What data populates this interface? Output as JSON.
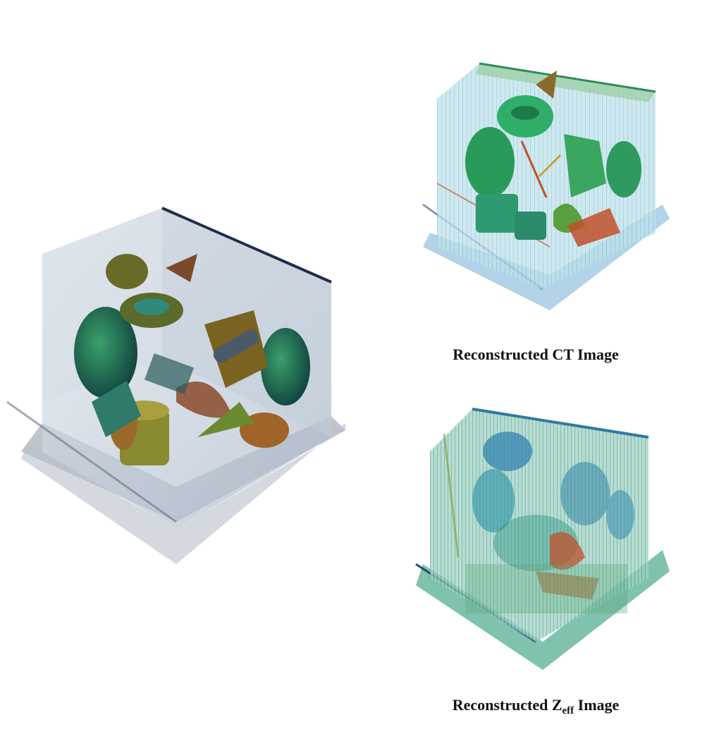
{
  "captions": {
    "ct": "Reconstructed CT Image",
    "zeff_prefix": "Reconstructed Z",
    "zeff_subscript": "eff",
    "zeff_suffix": " Image"
  },
  "colors": {
    "box_glass": "#c9d3de",
    "box_edge": "#1e2e4a",
    "object_green": "#2f8f5a",
    "object_olive": "#8a7a2a",
    "object_rust": "#9a5a2a",
    "ct_cyan": "#7fc4d6",
    "ct_green": "#2fae6a",
    "ct_red": "#c0502a",
    "zeff_teal": "#3ca8a8",
    "zeff_blue": "#2f7fb0"
  },
  "icons": {
    "ground_truth": "ground-truth-volume-render",
    "ct": "reconstructed-ct-volume-render",
    "zeff": "reconstructed-zeff-volume-render"
  }
}
